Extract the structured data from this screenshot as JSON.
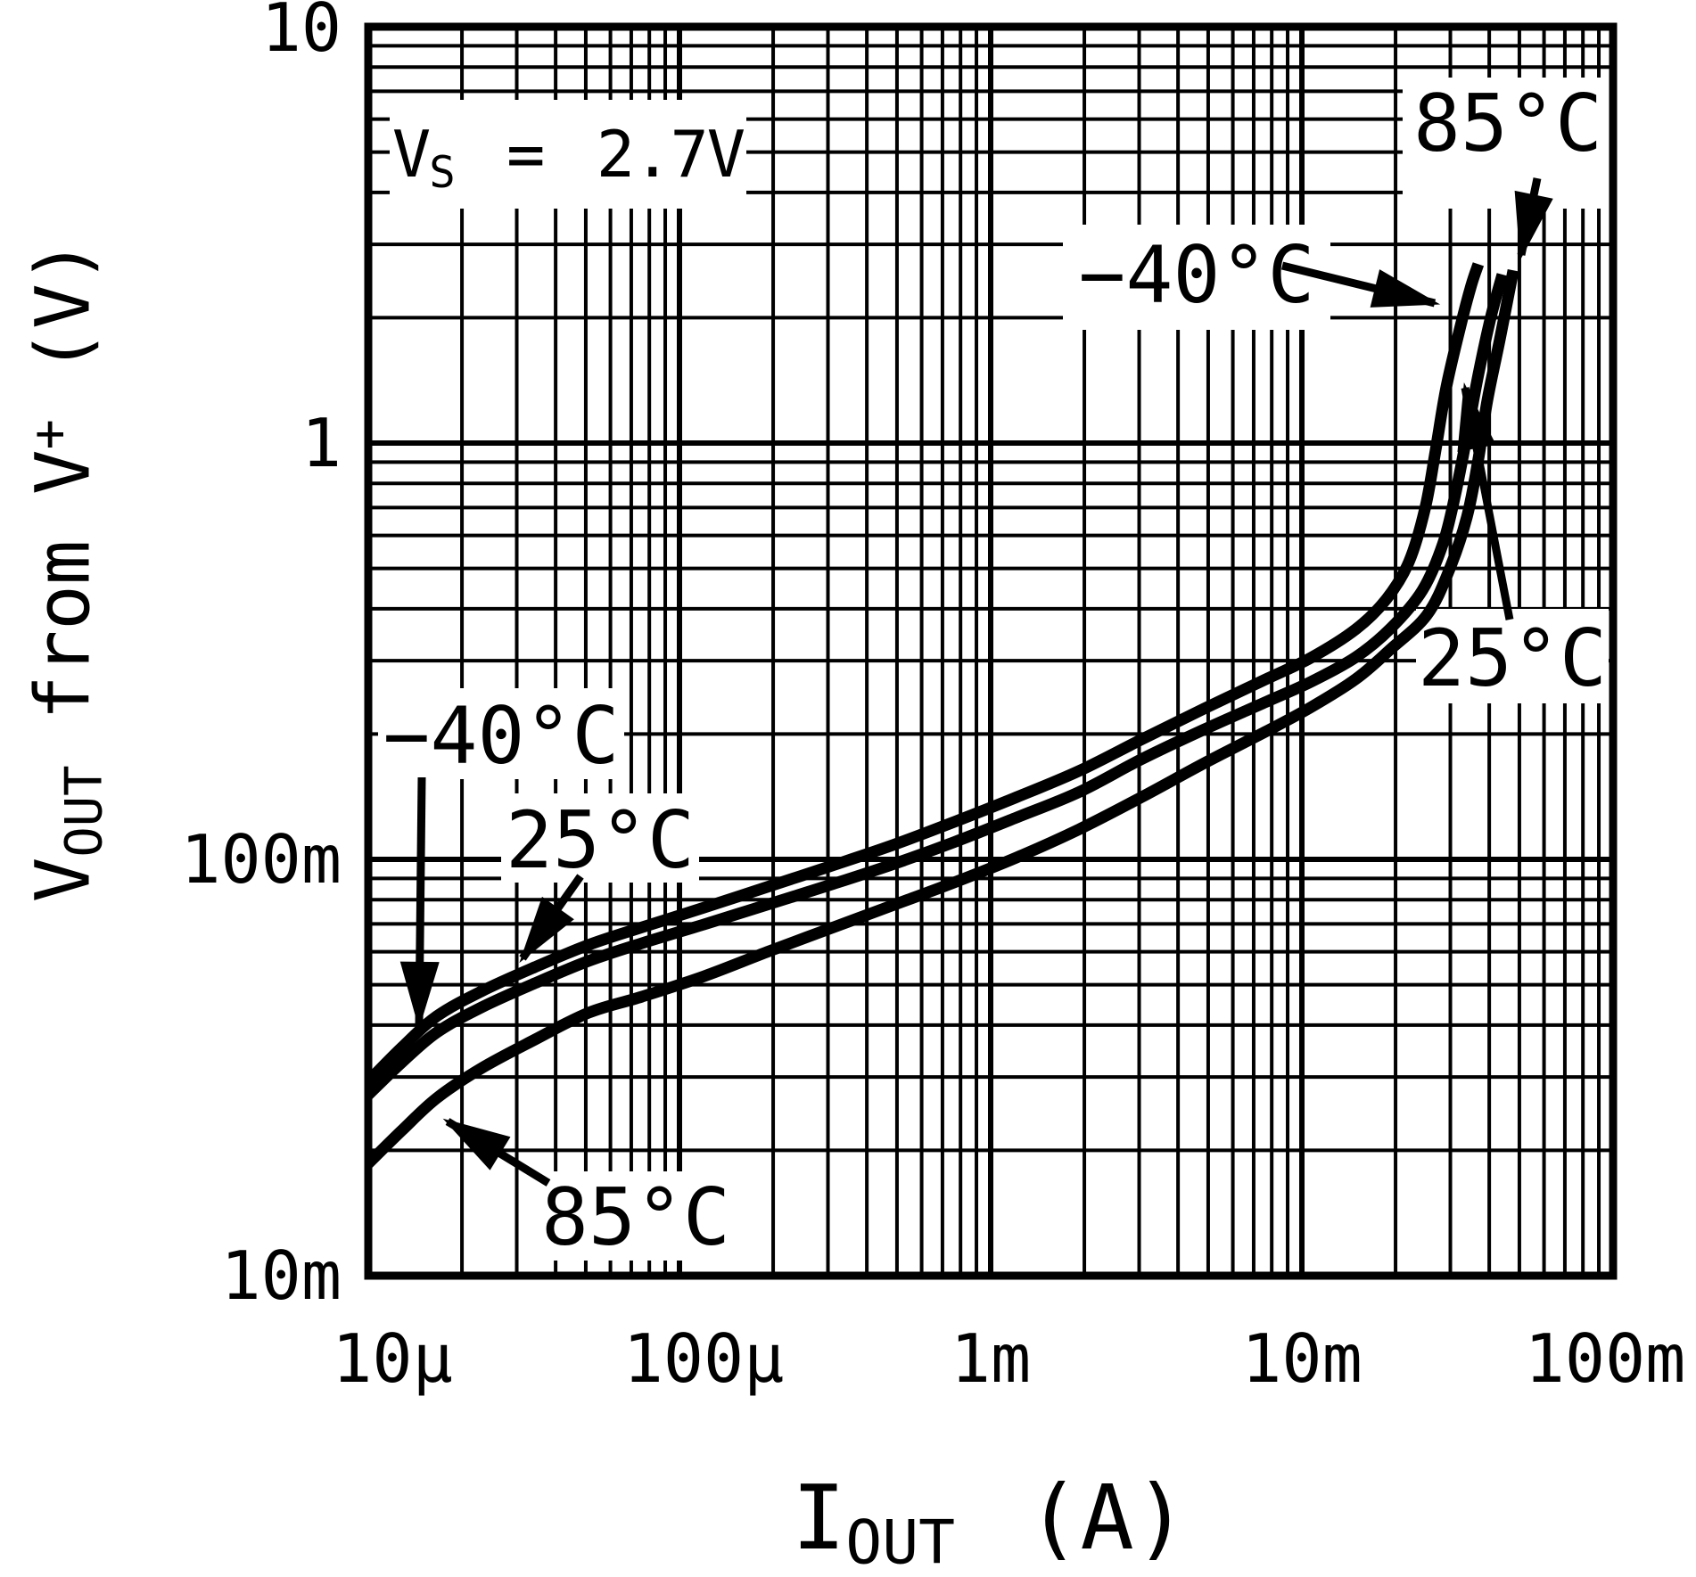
{
  "annotations": {
    "vs": {
      "v": "V",
      "sub": "S",
      "rest": " = 2.7V"
    },
    "temp_85_top": "85°C",
    "temp_m40_top": "−40°C",
    "temp_25_right": "25°C",
    "temp_m40_left": "−40°C",
    "temp_25_left": "25°C",
    "temp_85_bottom": "85°C"
  },
  "axes": {
    "x": {
      "title_main": "I",
      "title_sub": "OUT",
      "title_rest": " (A)",
      "tick_labels": [
        "10µ",
        "100µ",
        "1m",
        "10m",
        "100m"
      ]
    },
    "y": {
      "title_p1": "V",
      "title_sub": "OUT",
      "title_p2": " from V",
      "title_sup": "+",
      "title_p3": " (V)",
      "tick_labels": [
        "10",
        "1",
        "100m",
        "10m"
      ]
    }
  },
  "chart_data": {
    "type": "line",
    "title": "",
    "xlabel": "IOUT (A)",
    "ylabel": "VOUT from V+ (V)",
    "x_scale": "log",
    "y_scale": "log",
    "xlim": [
      1e-05,
      0.1
    ],
    "ylim": [
      0.01,
      10
    ],
    "x_ticks": [
      "10µ",
      "100µ",
      "1m",
      "10m",
      "100m"
    ],
    "y_ticks": [
      "10m",
      "100m",
      "1",
      "10"
    ],
    "grid": "log-minor-and-major",
    "legend_position": "inline-arrow-callouts",
    "condition_annotation": "VS = 2.7V",
    "series": [
      {
        "name": "-40°C",
        "points_A_V": [
          [
            1e-05,
            0.0293
          ],
          [
            1.28e-05,
            0.0353
          ],
          [
            1.66e-05,
            0.042
          ],
          [
            2.31e-05,
            0.0482
          ],
          [
            3.43e-05,
            0.0551
          ],
          [
            5.1e-05,
            0.0623
          ],
          [
            7.58e-05,
            0.0687
          ],
          [
            0.00012,
            0.0766
          ],
          [
            0.000191,
            0.0858
          ],
          [
            0.000303,
            0.0961
          ],
          [
            0.000481,
            0.108
          ],
          [
            0.000763,
            0.123
          ],
          [
            0.00121,
            0.141
          ],
          [
            0.00192,
            0.163
          ],
          [
            0.00305,
            0.194
          ],
          [
            0.00484,
            0.23
          ],
          [
            0.00768,
            0.271
          ],
          [
            0.0107,
            0.305
          ],
          [
            0.0149,
            0.357
          ],
          [
            0.0187,
            0.422
          ],
          [
            0.0221,
            0.519
          ],
          [
            0.0249,
            0.698
          ],
          [
            0.0269,
            0.961
          ],
          [
            0.0291,
            1.36
          ],
          [
            0.0324,
            1.92
          ],
          [
            0.035,
            2.39
          ],
          [
            0.0369,
            2.69
          ]
        ]
      },
      {
        "name": "25°C",
        "points_A_V": [
          [
            1e-05,
            0.0272
          ],
          [
            1.28e-05,
            0.0325
          ],
          [
            1.66e-05,
            0.0384
          ],
          [
            2.31e-05,
            0.0441
          ],
          [
            3.43e-05,
            0.0504
          ],
          [
            5.1e-05,
            0.057
          ],
          [
            7.58e-05,
            0.0629
          ],
          [
            0.00012,
            0.0698
          ],
          [
            0.000191,
            0.0778
          ],
          [
            0.000303,
            0.0867
          ],
          [
            0.000481,
            0.0971
          ],
          [
            0.000763,
            0.11
          ],
          [
            0.00121,
            0.126
          ],
          [
            0.00192,
            0.145
          ],
          [
            0.00305,
            0.174
          ],
          [
            0.00484,
            0.205
          ],
          [
            0.00768,
            0.239
          ],
          [
            0.0107,
            0.267
          ],
          [
            0.0149,
            0.306
          ],
          [
            0.0193,
            0.359
          ],
          [
            0.0244,
            0.443
          ],
          [
            0.0284,
            0.573
          ],
          [
            0.0311,
            0.751
          ],
          [
            0.0339,
            1.04
          ],
          [
            0.0369,
            1.46
          ],
          [
            0.0405,
            2.01
          ],
          [
            0.0441,
            2.54
          ]
        ]
      },
      {
        "name": "85°C",
        "points_A_V": [
          [
            1e-05,
            0.0186
          ],
          [
            1.28e-05,
            0.0223
          ],
          [
            1.66e-05,
            0.0267
          ],
          [
            2.31e-05,
            0.0315
          ],
          [
            3.43e-05,
            0.0369
          ],
          [
            5.1e-05,
            0.0428
          ],
          [
            7.58e-05,
            0.0468
          ],
          [
            0.00012,
            0.0524
          ],
          [
            0.000191,
            0.0599
          ],
          [
            0.000303,
            0.0681
          ],
          [
            0.000481,
            0.0774
          ],
          [
            0.000763,
            0.088
          ],
          [
            0.00121,
            0.101
          ],
          [
            0.00192,
            0.118
          ],
          [
            0.00305,
            0.141
          ],
          [
            0.00484,
            0.17
          ],
          [
            0.00768,
            0.203
          ],
          [
            0.0107,
            0.232
          ],
          [
            0.0149,
            0.271
          ],
          [
            0.0193,
            0.32
          ],
          [
            0.0252,
            0.386
          ],
          [
            0.0297,
            0.494
          ],
          [
            0.0339,
            0.664
          ],
          [
            0.0369,
            0.915
          ],
          [
            0.0394,
            1.26
          ],
          [
            0.0433,
            1.78
          ],
          [
            0.0478,
            2.6
          ]
        ]
      }
    ]
  }
}
